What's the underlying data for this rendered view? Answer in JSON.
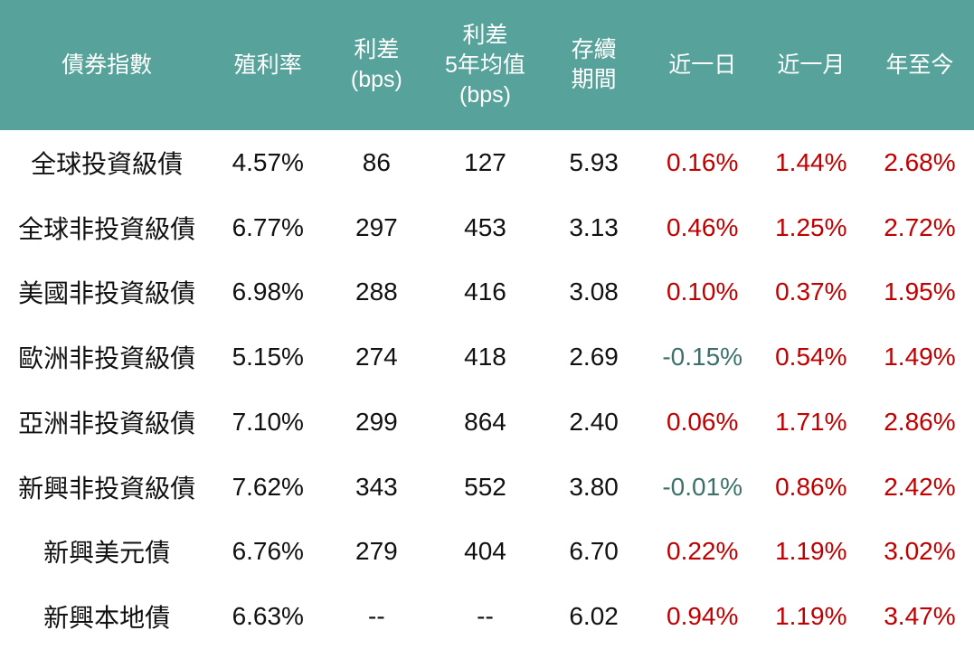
{
  "colors": {
    "header_bg": "#57a29a",
    "header_text": "#ffffff",
    "positive": "#c00000",
    "negative": "#3d706b",
    "body_text": "#111111",
    "row_bg": "#ffffff"
  },
  "table": {
    "columns": [
      {
        "id": "index",
        "label": "債券指數"
      },
      {
        "id": "yield",
        "label": "殖利率"
      },
      {
        "id": "spread",
        "label": "利差\n(bps)"
      },
      {
        "id": "spread_5y_avg",
        "label": "利差\n5年均值\n(bps)"
      },
      {
        "id": "duration",
        "label": "存續\n期間"
      },
      {
        "id": "change_1d",
        "label": "近一日"
      },
      {
        "id": "change_1m",
        "label": "近一月"
      },
      {
        "id": "change_ytd",
        "label": "年至今"
      }
    ],
    "change_columns": [
      "change_1d",
      "change_1m",
      "change_ytd"
    ],
    "rows": [
      {
        "index": "全球投資級債",
        "yield": "4.57%",
        "spread": "86",
        "spread_5y_avg": "127",
        "duration": "5.93",
        "change_1d": "0.16%",
        "change_1m": "1.44%",
        "change_ytd": "2.68%"
      },
      {
        "index": "全球非投資級債",
        "yield": "6.77%",
        "spread": "297",
        "spread_5y_avg": "453",
        "duration": "3.13",
        "change_1d": "0.46%",
        "change_1m": "1.25%",
        "change_ytd": "2.72%"
      },
      {
        "index": "美國非投資級債",
        "yield": "6.98%",
        "spread": "288",
        "spread_5y_avg": "416",
        "duration": "3.08",
        "change_1d": "0.10%",
        "change_1m": "0.37%",
        "change_ytd": "1.95%"
      },
      {
        "index": "歐洲非投資級債",
        "yield": "5.15%",
        "spread": "274",
        "spread_5y_avg": "418",
        "duration": "2.69",
        "change_1d": "-0.15%",
        "change_1m": "0.54%",
        "change_ytd": "1.49%"
      },
      {
        "index": "亞洲非投資級債",
        "yield": "7.10%",
        "spread": "299",
        "spread_5y_avg": "864",
        "duration": "2.40",
        "change_1d": "0.06%",
        "change_1m": "1.71%",
        "change_ytd": "2.86%"
      },
      {
        "index": "新興非投資級債",
        "yield": "7.62%",
        "spread": "343",
        "spread_5y_avg": "552",
        "duration": "3.80",
        "change_1d": "-0.01%",
        "change_1m": "0.86%",
        "change_ytd": "2.42%"
      },
      {
        "index": "新興美元債",
        "yield": "6.76%",
        "spread": "279",
        "spread_5y_avg": "404",
        "duration": "6.70",
        "change_1d": "0.22%",
        "change_1m": "1.19%",
        "change_ytd": "3.02%"
      },
      {
        "index": "新興本地債",
        "yield": "6.63%",
        "spread": "--",
        "spread_5y_avg": "--",
        "duration": "6.02",
        "change_1d": "0.94%",
        "change_1m": "1.19%",
        "change_ytd": "3.47%"
      }
    ]
  }
}
